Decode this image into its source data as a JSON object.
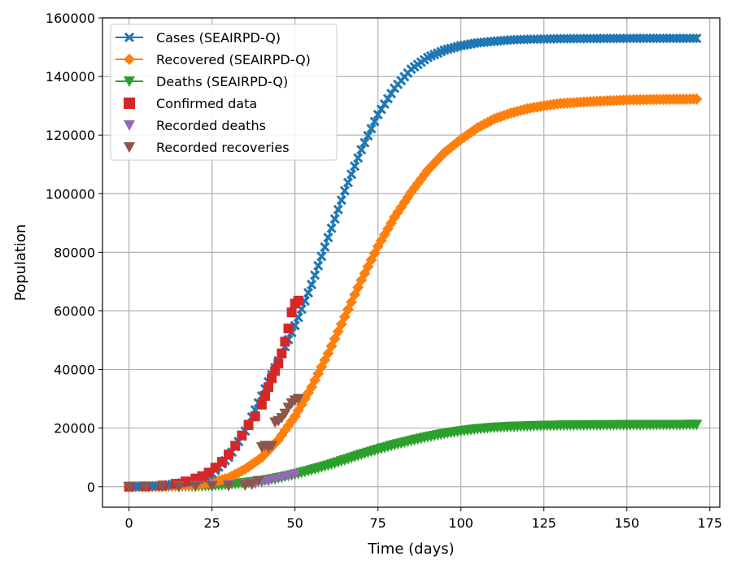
{
  "chart_data": {
    "type": "line",
    "xlabel": "Time (days)",
    "ylabel": "Population",
    "xlim": [
      -8,
      178
    ],
    "ylim": [
      -7000,
      160000
    ],
    "xticks": [
      0,
      25,
      50,
      75,
      100,
      125,
      150,
      175
    ],
    "yticks": [
      0,
      20000,
      40000,
      60000,
      80000,
      100000,
      120000,
      140000,
      160000
    ],
    "grid": true,
    "legend_position": "top-left",
    "series": [
      {
        "name": "Cases (SEAIRPD-Q)",
        "kind": "line-marker",
        "marker": "x",
        "color": "#1f77b4",
        "x": [
          0,
          10,
          20,
          25,
          30,
          35,
          40,
          45,
          50,
          55,
          60,
          65,
          70,
          75,
          80,
          85,
          90,
          95,
          100,
          105,
          110,
          115,
          120,
          125,
          130,
          140,
          150,
          160,
          171
        ],
        "y": [
          0,
          300,
          2000,
          4500,
          10000,
          19000,
          31000,
          43000,
          55000,
          69000,
          85000,
          101000,
          115000,
          127000,
          136000,
          142500,
          146500,
          149000,
          150500,
          151500,
          152000,
          152500,
          152700,
          152800,
          152900,
          152950,
          153000,
          153000,
          153000
        ]
      },
      {
        "name": "Recovered (SEAIRPD-Q)",
        "kind": "line-marker",
        "marker": "D",
        "color": "#ff7f0e",
        "x": [
          0,
          10,
          20,
          25,
          30,
          35,
          40,
          45,
          50,
          55,
          60,
          65,
          70,
          75,
          80,
          85,
          90,
          95,
          100,
          105,
          110,
          115,
          120,
          125,
          130,
          140,
          150,
          160,
          171
        ],
        "y": [
          0,
          100,
          700,
          1500,
          3000,
          6000,
          10000,
          16000,
          24000,
          34000,
          45500,
          58000,
          70500,
          82000,
          92000,
          100500,
          108000,
          114000,
          118500,
          122500,
          125500,
          127500,
          129000,
          130000,
          130800,
          131500,
          132000,
          132200,
          132300
        ]
      },
      {
        "name": "Deaths (SEAIRPD-Q)",
        "kind": "line-marker",
        "marker": "v",
        "color": "#2ca02c",
        "x": [
          0,
          10,
          20,
          25,
          30,
          35,
          40,
          45,
          50,
          55,
          60,
          65,
          70,
          75,
          80,
          85,
          90,
          95,
          100,
          105,
          110,
          115,
          120,
          125,
          130,
          140,
          150,
          160,
          171
        ],
        "y": [
          0,
          50,
          200,
          400,
          800,
          1300,
          2000,
          3000,
          4200,
          5700,
          7300,
          9100,
          11000,
          12700,
          14300,
          15700,
          17000,
          18100,
          19000,
          19700,
          20200,
          20500,
          20700,
          20850,
          20950,
          21050,
          21100,
          21150,
          21200
        ]
      },
      {
        "name": "Confirmed data",
        "kind": "scatter",
        "marker": "s",
        "color": "#d62728",
        "x": [
          0,
          5,
          10,
          14,
          17,
          20,
          22,
          24,
          26,
          28,
          30,
          32,
          34,
          36,
          38,
          40,
          41,
          42,
          43,
          44,
          45,
          46,
          47,
          48,
          49,
          50,
          51
        ],
        "y": [
          0,
          100,
          400,
          1000,
          1800,
          2800,
          3600,
          4800,
          6500,
          8500,
          11000,
          14000,
          17500,
          21000,
          24000,
          28000,
          31000,
          34000,
          37000,
          39500,
          42000,
          45500,
          49500,
          54000,
          59500,
          62500,
          63500
        ]
      },
      {
        "name": "Recorded deaths",
        "kind": "scatter",
        "marker": "v",
        "color": "#9467bd",
        "x": [
          0,
          5,
          10,
          15,
          20,
          25,
          30,
          35,
          38,
          40,
          42,
          44,
          46,
          48,
          50
        ],
        "y": [
          0,
          20,
          60,
          150,
          300,
          450,
          650,
          900,
          1200,
          1600,
          2000,
          2500,
          3100,
          3700,
          4300
        ]
      },
      {
        "name": "Recorded recoveries",
        "kind": "scatter",
        "marker": "v",
        "color": "#8c564b",
        "x": [
          0,
          5,
          10,
          15,
          20,
          25,
          30,
          35,
          37,
          39,
          40,
          41,
          42,
          43,
          44,
          45,
          46,
          47,
          48,
          49,
          50,
          51
        ],
        "y": [
          0,
          0,
          0,
          0,
          100,
          200,
          300,
          500,
          800,
          2000,
          13500,
          14000,
          13500,
          14000,
          22000,
          22500,
          23500,
          25000,
          27000,
          28500,
          29500,
          30000
        ]
      }
    ]
  }
}
